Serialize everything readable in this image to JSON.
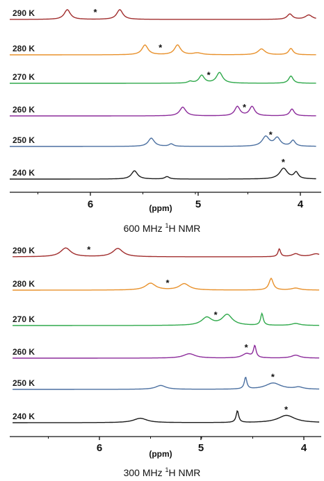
{
  "chart_data": [
    {
      "type": "line",
      "title_prefix": "600 MHz ",
      "title_sup": "1",
      "title_suffix": "H NMR",
      "xlabel": "(ppm)",
      "xlim": [
        6.8,
        3.85
      ],
      "x_reversed": true,
      "xticks": [
        6,
        5,
        4
      ],
      "grid": false,
      "series": [
        {
          "name": "290 K",
          "color": "#a02c2c",
          "peaks": [
            {
              "x": 6.22,
              "h": 1.0,
              "w": 0.035
            },
            {
              "x": 5.72,
              "h": 1.0,
              "w": 0.035
            },
            {
              "x": 4.1,
              "h": 0.55,
              "w": 0.03
            },
            {
              "x": 3.92,
              "h": 0.45,
              "w": 0.04
            }
          ],
          "stars": [
            5.95
          ]
        },
        {
          "name": "280 K",
          "color": "#e8902a",
          "peaks": [
            {
              "x": 5.48,
              "h": 1.0,
              "w": 0.035
            },
            {
              "x": 5.17,
              "h": 1.0,
              "w": 0.035
            },
            {
              "x": 4.98,
              "h": 0.18,
              "w": 0.05
            },
            {
              "x": 4.37,
              "h": 0.6,
              "w": 0.04
            },
            {
              "x": 4.09,
              "h": 0.65,
              "w": 0.025
            }
          ],
          "stars": [
            5.33
          ]
        },
        {
          "name": "270 K",
          "color": "#2ea84a",
          "peaks": [
            {
              "x": 5.05,
              "h": 0.18,
              "w": 0.025
            },
            {
              "x": 4.94,
              "h": 0.8,
              "w": 0.03
            },
            {
              "x": 4.77,
              "h": 1.1,
              "w": 0.035
            },
            {
              "x": 4.09,
              "h": 0.75,
              "w": 0.025
            }
          ],
          "stars": [
            4.87
          ]
        },
        {
          "name": "260 K",
          "color": "#8b2a9a",
          "peaks": [
            {
              "x": 5.12,
              "h": 0.9,
              "w": 0.035
            },
            {
              "x": 4.6,
              "h": 0.95,
              "w": 0.03
            },
            {
              "x": 4.46,
              "h": 0.95,
              "w": 0.03
            },
            {
              "x": 4.08,
              "h": 0.7,
              "w": 0.025
            }
          ],
          "stars": [
            4.53
          ]
        },
        {
          "name": "250 K",
          "color": "#4a6fa0",
          "peaks": [
            {
              "x": 5.42,
              "h": 0.85,
              "w": 0.035
            },
            {
              "x": 5.23,
              "h": 0.25,
              "w": 0.025
            },
            {
              "x": 4.33,
              "h": 1.0,
              "w": 0.04
            },
            {
              "x": 4.22,
              "h": 0.85,
              "w": 0.035
            },
            {
              "x": 4.07,
              "h": 0.6,
              "w": 0.025
            }
          ],
          "stars": [
            4.28
          ]
        },
        {
          "name": "240 K",
          "color": "#1a1a1a",
          "peaks": [
            {
              "x": 5.58,
              "h": 0.85,
              "w": 0.035
            },
            {
              "x": 5.27,
              "h": 0.25,
              "w": 0.025
            },
            {
              "x": 4.16,
              "h": 1.1,
              "w": 0.045
            },
            {
              "x": 4.04,
              "h": 0.65,
              "w": 0.025
            }
          ],
          "stars": [
            4.16
          ]
        }
      ]
    },
    {
      "type": "line",
      "title_prefix": "300 MHz ",
      "title_sup": "1",
      "title_suffix": "H NMR",
      "xlabel": "(ppm)",
      "xlim": [
        6.85,
        3.85
      ],
      "x_reversed": true,
      "xticks": [
        6,
        5,
        4
      ],
      "grid": false,
      "series": [
        {
          "name": "290 K",
          "color": "#a02c2c",
          "peaks": [
            {
              "x": 6.33,
              "h": 0.9,
              "w": 0.06
            },
            {
              "x": 5.82,
              "h": 0.85,
              "w": 0.06
            },
            {
              "x": 4.24,
              "h": 0.8,
              "w": 0.015
            },
            {
              "x": 4.08,
              "h": 0.3,
              "w": 0.04
            },
            {
              "x": 3.88,
              "h": 0.3,
              "w": 0.06
            }
          ],
          "stars": [
            6.1
          ]
        },
        {
          "name": "280 K",
          "color": "#e8902a",
          "peaks": [
            {
              "x": 5.5,
              "h": 0.7,
              "w": 0.06
            },
            {
              "x": 5.17,
              "h": 0.65,
              "w": 0.06
            },
            {
              "x": 4.32,
              "h": 1.2,
              "w": 0.025
            },
            {
              "x": 4.08,
              "h": 0.2,
              "w": 0.05
            }
          ],
          "stars": [
            5.33
          ]
        },
        {
          "name": "270 K",
          "color": "#2ea84a",
          "peaks": [
            {
              "x": 4.95,
              "h": 0.8,
              "w": 0.06
            },
            {
              "x": 4.75,
              "h": 1.1,
              "w": 0.06
            },
            {
              "x": 4.41,
              "h": 1.2,
              "w": 0.015
            },
            {
              "x": 4.08,
              "h": 0.2,
              "w": 0.05
            }
          ],
          "stars": [
            4.86
          ]
        },
        {
          "name": "260 K",
          "color": "#8b2a9a",
          "peaks": [
            {
              "x": 5.12,
              "h": 0.45,
              "w": 0.07
            },
            {
              "x": 4.56,
              "h": 0.45,
              "w": 0.05
            },
            {
              "x": 4.48,
              "h": 1.2,
              "w": 0.015
            },
            {
              "x": 4.08,
              "h": 0.3,
              "w": 0.05
            }
          ],
          "stars": [
            4.56
          ]
        },
        {
          "name": "250 K",
          "color": "#4a6fa0",
          "peaks": [
            {
              "x": 5.4,
              "h": 0.4,
              "w": 0.06
            },
            {
              "x": 4.57,
              "h": 1.2,
              "w": 0.015
            },
            {
              "x": 4.3,
              "h": 0.65,
              "w": 0.09
            },
            {
              "x": 4.05,
              "h": 0.2,
              "w": 0.05
            }
          ],
          "stars": [
            4.3
          ]
        },
        {
          "name": "240 K",
          "color": "#1a1a1a",
          "peaks": [
            {
              "x": 5.6,
              "h": 0.45,
              "w": 0.08
            },
            {
              "x": 4.65,
              "h": 1.2,
              "w": 0.015
            },
            {
              "x": 4.17,
              "h": 0.75,
              "w": 0.1
            }
          ],
          "stars": [
            4.17
          ]
        }
      ]
    }
  ]
}
